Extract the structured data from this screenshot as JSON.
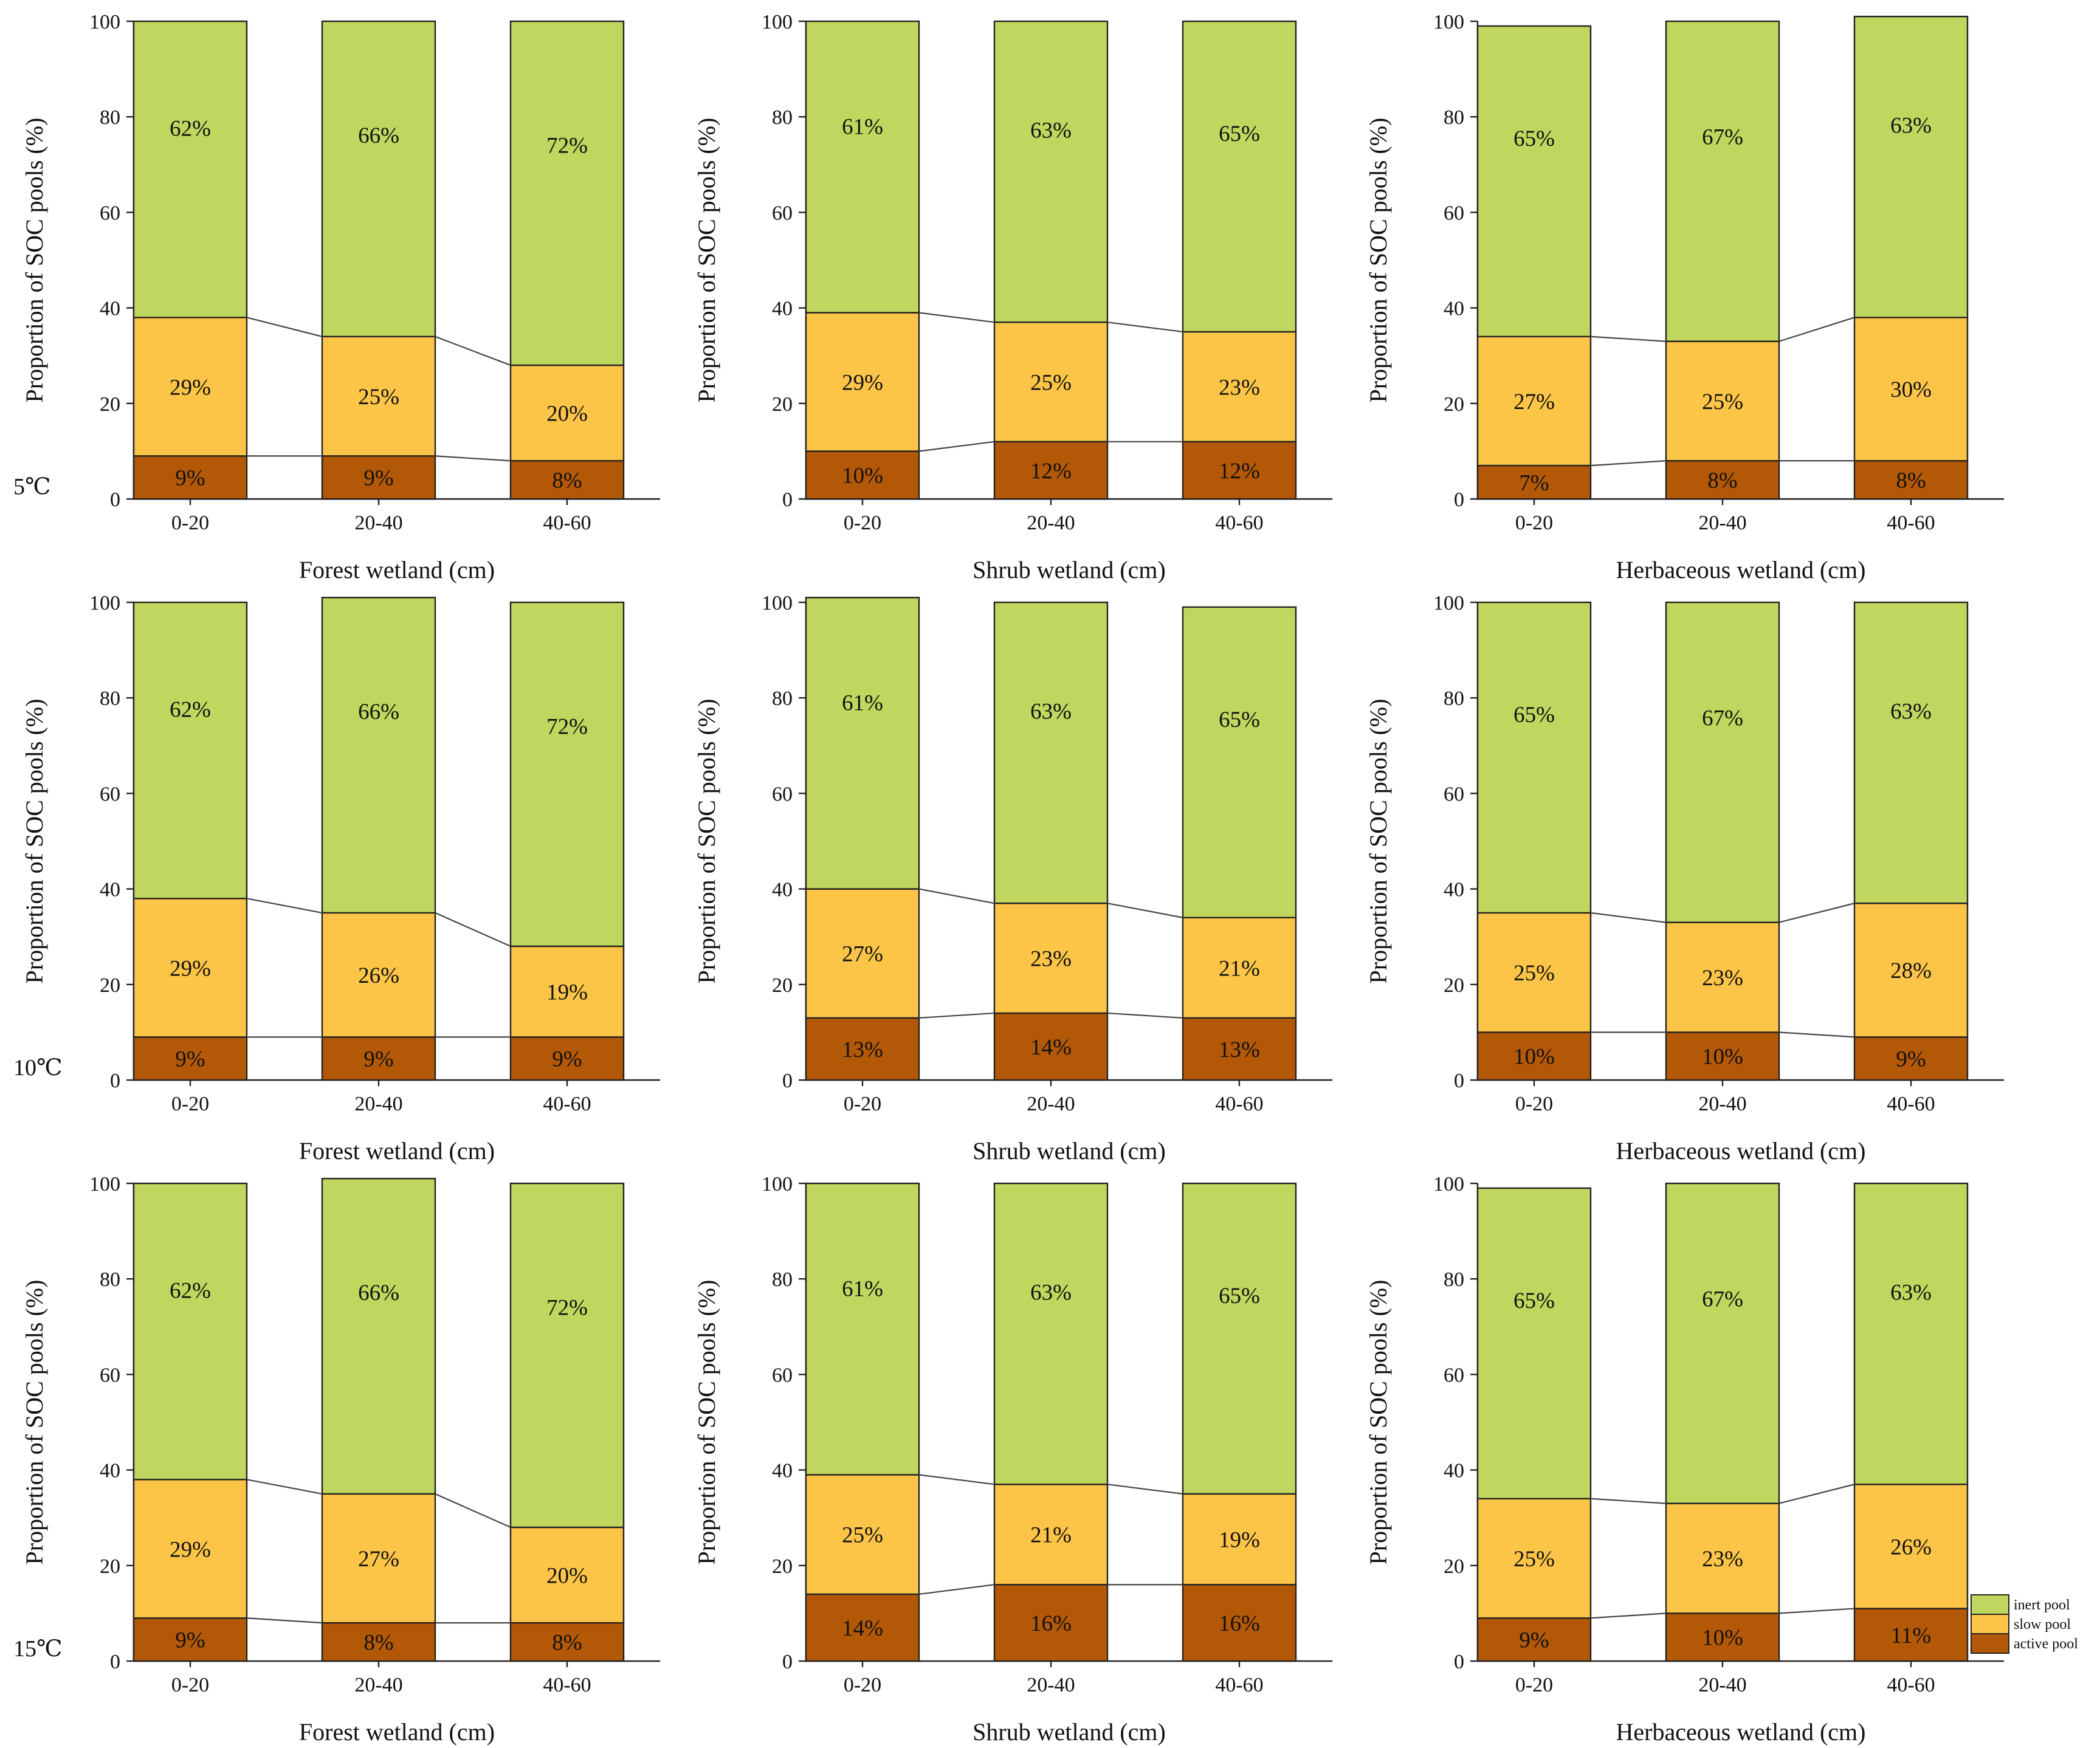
{
  "chart_data": {
    "type": "bar",
    "stacked": true,
    "ylabel": "Proportion of SOC pools (%)",
    "ylim": [
      0,
      100
    ],
    "yticks": [
      0,
      20,
      40,
      60,
      80,
      100
    ],
    "categories": [
      "0-20",
      "20-40",
      "40-60"
    ],
    "series_names": [
      "inert pool",
      "slow pool",
      "active pool"
    ],
    "colors": {
      "active": "#b35806",
      "slow": "#fdc548",
      "inert": "#bfd75f"
    },
    "legend": {
      "position": "bottom-right",
      "entries": [
        {
          "name": "inert pool",
          "color": "#bfd75f"
        },
        {
          "name": "slow pool",
          "color": "#fdc548"
        },
        {
          "name": "active pool",
          "color": "#b35806"
        }
      ]
    },
    "rows": [
      {
        "temperature": "5℃"
      },
      {
        "temperature": "10℃"
      },
      {
        "temperature": "15℃"
      }
    ],
    "panels": [
      {
        "xlabel": "Forest wetland (cm)",
        "active": [
          9,
          9,
          8
        ],
        "slow": [
          29,
          25,
          20
        ],
        "inert": [
          62,
          66,
          72
        ],
        "active_labels": [
          "9%",
          "9%",
          "8%"
        ],
        "slow_labels": [
          "29%",
          "25%",
          "20%"
        ],
        "inert_labels": [
          "62%",
          "66%",
          "72%"
        ]
      },
      {
        "xlabel": "Shrub wetland (cm)",
        "active": [
          10,
          12,
          12
        ],
        "slow": [
          29,
          25,
          23
        ],
        "inert": [
          61,
          63,
          65
        ],
        "active_labels": [
          "10%",
          "12%",
          "12%"
        ],
        "slow_labels": [
          "29%",
          "25%",
          "23%"
        ],
        "inert_labels": [
          "61%",
          "63%",
          "65%"
        ]
      },
      {
        "xlabel": "Herbaceous wetland (cm)",
        "active": [
          7,
          8,
          8
        ],
        "slow": [
          27,
          25,
          30
        ],
        "inert": [
          65,
          67,
          63
        ],
        "active_labels": [
          "7%",
          "8%",
          "8%"
        ],
        "slow_labels": [
          "27%",
          "25%",
          "30%"
        ],
        "inert_labels": [
          "65%",
          "67%",
          "63%"
        ]
      },
      {
        "xlabel": "Forest wetland (cm)",
        "active": [
          9,
          9,
          9
        ],
        "slow": [
          29,
          26,
          19
        ],
        "inert": [
          62,
          66,
          72
        ],
        "active_labels": [
          "9%",
          "9%",
          "9%"
        ],
        "slow_labels": [
          "29%",
          "26%",
          "19%"
        ],
        "inert_labels": [
          "62%",
          "66%",
          "72%"
        ]
      },
      {
        "xlabel": "Shrub wetland (cm)",
        "active": [
          13,
          14,
          13
        ],
        "slow": [
          27,
          23,
          21
        ],
        "inert": [
          61,
          63,
          65
        ],
        "active_labels": [
          "13%",
          "14%",
          "13%"
        ],
        "slow_labels": [
          "27%",
          "23%",
          "21%"
        ],
        "inert_labels": [
          "61%",
          "63%",
          "65%"
        ]
      },
      {
        "xlabel": "Herbaceous wetland (cm)",
        "active": [
          10,
          10,
          9
        ],
        "slow": [
          25,
          23,
          28
        ],
        "inert": [
          65,
          67,
          63
        ],
        "active_labels": [
          "10%",
          "10%",
          "9%"
        ],
        "slow_labels": [
          "25%",
          "23%",
          "28%"
        ],
        "inert_labels": [
          "65%",
          "67%",
          "63%"
        ]
      },
      {
        "xlabel": "Forest wetland (cm)",
        "active": [
          9,
          8,
          8
        ],
        "slow": [
          29,
          27,
          20
        ],
        "inert": [
          62,
          66,
          72
        ],
        "active_labels": [
          "9%",
          "8%",
          "8%"
        ],
        "slow_labels": [
          "29%",
          "27%",
          "20%"
        ],
        "inert_labels": [
          "62%",
          "66%",
          "72%"
        ]
      },
      {
        "xlabel": "Shrub wetland (cm)",
        "active": [
          14,
          16,
          16
        ],
        "slow": [
          25,
          21,
          19
        ],
        "inert": [
          61,
          63,
          65
        ],
        "active_labels": [
          "14%",
          "16%",
          "16%"
        ],
        "slow_labels": [
          "25%",
          "21%",
          "19%"
        ],
        "inert_labels": [
          "61%",
          "63%",
          "65%"
        ]
      },
      {
        "xlabel": "Herbaceous wetland (cm)",
        "active": [
          9,
          10,
          11
        ],
        "slow": [
          25,
          23,
          26
        ],
        "inert": [
          65,
          67,
          63
        ],
        "active_labels": [
          "9%",
          "10%",
          "11%"
        ],
        "slow_labels": [
          "25%",
          "23%",
          "26%"
        ],
        "inert_labels": [
          "65%",
          "67%",
          "63%"
        ]
      }
    ]
  }
}
